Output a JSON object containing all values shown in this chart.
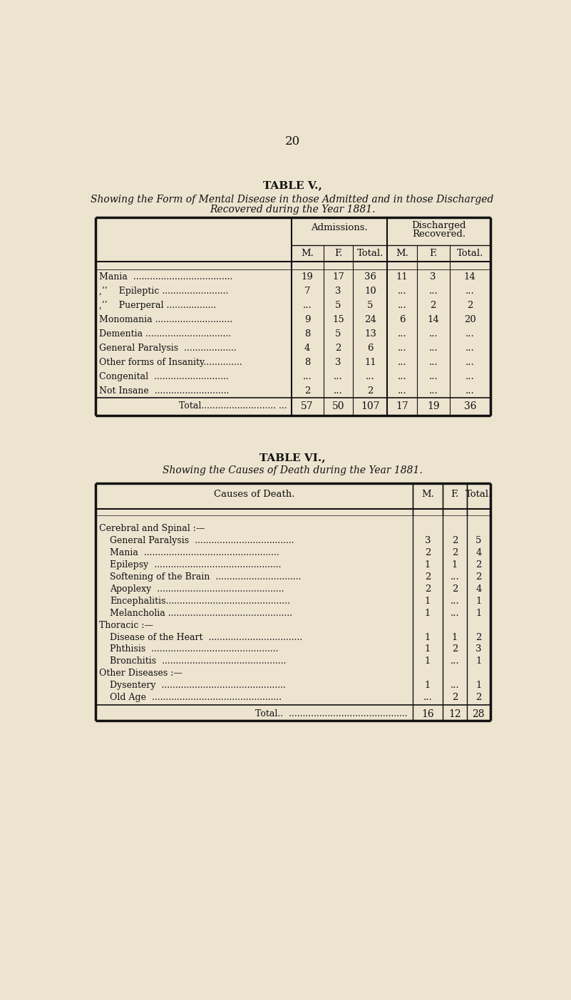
{
  "page_number": "20",
  "bg_color": "#ede4d0",
  "table5": {
    "title": "TABLE V.,",
    "subtitle_line1": "Showing the Form of Mental Disease in those Admitted and in those Discharged",
    "subtitle_line2": "Recovered during the Year 1881.",
    "rows": [
      [
        "Mania  ....................................",
        "19",
        "17",
        "36",
        "11",
        "3",
        "14"
      ],
      [
        ",’’    Epileptic ........................",
        "7",
        "3",
        "10",
        "...",
        "...",
        "..."
      ],
      [
        ",’’    Puerperal ..................",
        "...",
        "5",
        "5",
        "...",
        "2",
        "2"
      ],
      [
        "Monomania ............................",
        "9",
        "15",
        "24",
        "6",
        "14",
        "20"
      ],
      [
        "Dementia ...............................",
        "8",
        "5",
        "13",
        "...",
        "...",
        "..."
      ],
      [
        "General Paralysis  ...................",
        "4",
        "2",
        "6",
        "...",
        "...",
        "..."
      ],
      [
        "Other forms of Insanity..............",
        "8",
        "3",
        "11",
        "...",
        "...",
        "..."
      ],
      [
        "Congenital  ...........................",
        "...",
        "...",
        "...",
        "...",
        "...",
        "..."
      ],
      [
        "Not Insane  ...........................",
        "2",
        "...",
        "2",
        "...",
        "...",
        "..."
      ]
    ],
    "total_row": [
      "Total........................... ...",
      "57",
      "50",
      "107",
      "17",
      "19",
      "36"
    ]
  },
  "table6": {
    "title": "TABLE VI.,",
    "subtitle": "Showing the Causes of Death during the Year 1881.",
    "sections": [
      {
        "header": "Cerebral and Spinal :—",
        "rows": [
          [
            "General Paralysis  ....................................",
            "3",
            "2",
            "5"
          ],
          [
            "Mania  .................................................",
            "2",
            "2",
            "4"
          ],
          [
            "Epilepsy  ..............................................",
            "1",
            "1",
            "2"
          ],
          [
            "Softening of the Brain  ...............................",
            "2",
            "...",
            "2"
          ],
          [
            "Apoplexy  ..............................................",
            "2",
            "2",
            "4"
          ],
          [
            "Encephalitis.............................................",
            "1",
            "...",
            "1"
          ],
          [
            "Melancholia .............................................",
            "1",
            "...",
            "1"
          ]
        ]
      },
      {
        "header": "Thoracic :—",
        "rows": [
          [
            "Disease of the Heart  ..................................",
            "1",
            "1",
            "2"
          ],
          [
            "Phthisis  ..............................................",
            "1",
            "2",
            "3"
          ],
          [
            "Bronchitis  .............................................",
            "1",
            "...",
            "1"
          ]
        ]
      },
      {
        "header": "Other Diseases :—",
        "rows": [
          [
            "Dysentery  .............................................",
            "1",
            "...",
            "1"
          ],
          [
            "Old Age  ...............................................",
            "...",
            "2",
            "2"
          ]
        ]
      }
    ],
    "total_row": [
      "Total..  ...........................................",
      "16",
      "12",
      "28"
    ]
  }
}
